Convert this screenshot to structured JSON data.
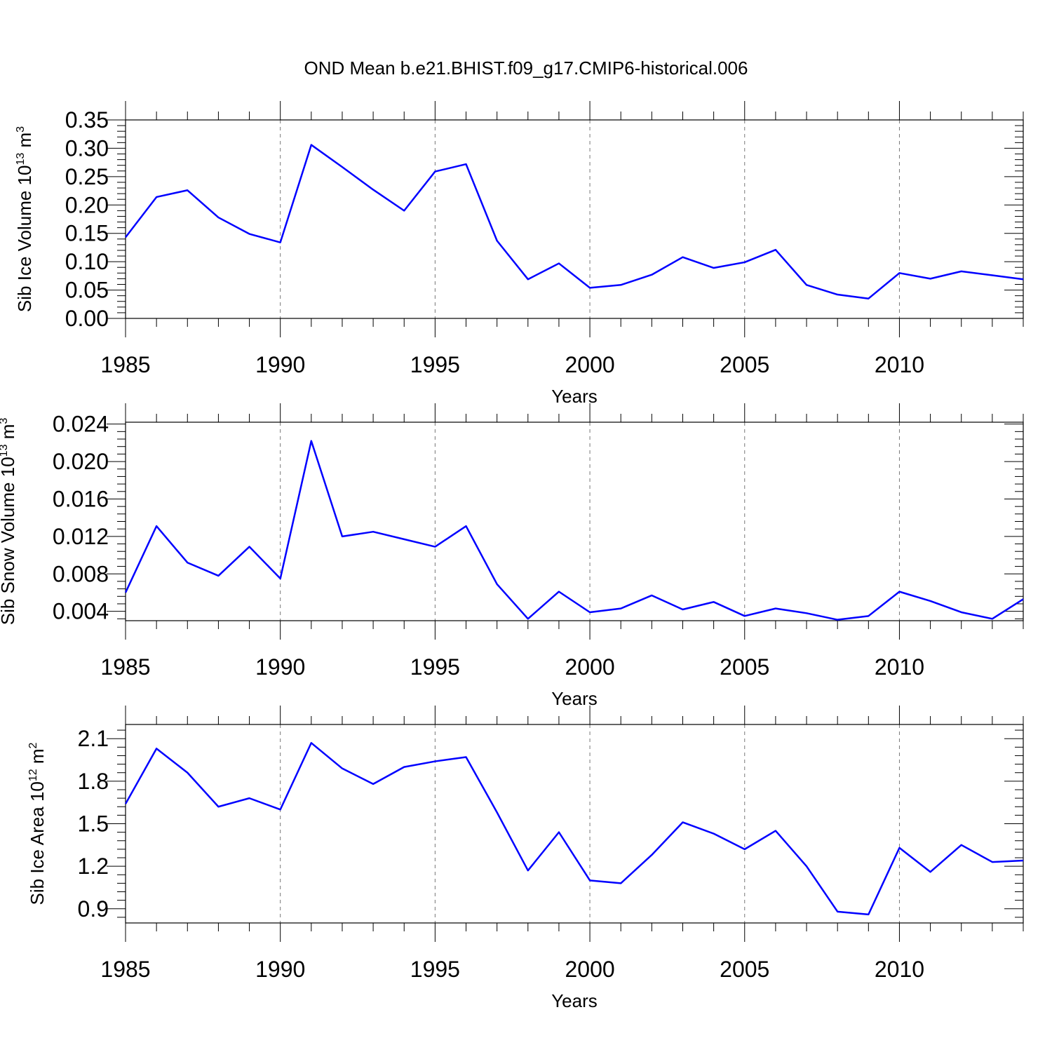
{
  "title": "OND Mean b.e21.BHIST.f09_g17.CMIP6-historical.006",
  "colors": {
    "series": "#0000ff",
    "axis": "#000000",
    "grid": "#777777"
  },
  "chart_data": [
    {
      "type": "line",
      "ylabel_main": "Sib Ice Volume 10",
      "ylabel_exp": "13",
      "ylabel_unit": " m",
      "ylabel_unit_exp": "3",
      "xlabel": "Years",
      "xlim": [
        1985,
        2014
      ],
      "ylim": [
        0.0,
        0.35
      ],
      "xticks": [
        1985,
        1990,
        1995,
        2000,
        2005,
        2010
      ],
      "xtick_labels": [
        "1985",
        "1990",
        "1995",
        "2000",
        "2005",
        "2010"
      ],
      "yticks": [
        0.0,
        0.05,
        0.1,
        0.15,
        0.2,
        0.25,
        0.3,
        0.35
      ],
      "ytick_labels": [
        "0.00",
        "0.05",
        "0.10",
        "0.15",
        "0.20",
        "0.25",
        "0.30",
        "0.35"
      ],
      "grid_x": true,
      "x": [
        1985,
        1986,
        1987,
        1988,
        1989,
        1990,
        1991,
        1992,
        1993,
        1994,
        1995,
        1996,
        1997,
        1998,
        1999,
        2000,
        2001,
        2002,
        2003,
        2004,
        2005,
        2006,
        2007,
        2008,
        2009,
        2010,
        2011,
        2012,
        2013,
        2014
      ],
      "series": [
        {
          "name": "Sib Ice Volume",
          "values": [
            0.143,
            0.214,
            0.226,
            0.178,
            0.149,
            0.134,
            0.306,
            0.267,
            0.227,
            0.19,
            0.259,
            0.272,
            0.137,
            0.069,
            0.097,
            0.054,
            0.059,
            0.077,
            0.108,
            0.089,
            0.099,
            0.121,
            0.059,
            0.042,
            0.035,
            0.08,
            0.07,
            0.083,
            0.076,
            0.069
          ]
        }
      ]
    },
    {
      "type": "line",
      "ylabel_main": "Sib Snow Volume 10",
      "ylabel_exp": "13",
      "ylabel_unit": " m",
      "ylabel_unit_exp": "3",
      "xlabel": "Years",
      "xlim": [
        1985,
        2014
      ],
      "ylim": [
        0.003,
        0.0242
      ],
      "xticks": [
        1985,
        1990,
        1995,
        2000,
        2005,
        2010
      ],
      "xtick_labels": [
        "1985",
        "1990",
        "1995",
        "2000",
        "2005",
        "2010"
      ],
      "yticks": [
        0.004,
        0.008,
        0.012,
        0.016,
        0.02,
        0.024
      ],
      "ytick_labels": [
        "0.004",
        "0.008",
        "0.012",
        "0.016",
        "0.020",
        "0.024"
      ],
      "grid_x": true,
      "x": [
        1985,
        1986,
        1987,
        1988,
        1989,
        1990,
        1991,
        1992,
        1993,
        1994,
        1995,
        1996,
        1997,
        1998,
        1999,
        2000,
        2001,
        2002,
        2003,
        2004,
        2005,
        2006,
        2007,
        2008,
        2009,
        2010,
        2011,
        2012,
        2013,
        2014
      ],
      "series": [
        {
          "name": "Sib Snow Volume",
          "values": [
            0.006,
            0.0131,
            0.0092,
            0.0078,
            0.0109,
            0.0075,
            0.0222,
            0.012,
            0.0125,
            0.0117,
            0.0109,
            0.0131,
            0.0069,
            0.0032,
            0.0061,
            0.0039,
            0.0043,
            0.0057,
            0.0042,
            0.005,
            0.0035,
            0.0043,
            0.0038,
            0.0031,
            0.0035,
            0.0061,
            0.0051,
            0.0039,
            0.0032,
            0.0053
          ]
        }
      ]
    },
    {
      "type": "line",
      "ylabel_main": "Sib Ice Area 10",
      "ylabel_exp": "12",
      "ylabel_unit": " m",
      "ylabel_unit_exp": "2",
      "xlabel": "Years",
      "xlim": [
        1985,
        2014
      ],
      "ylim": [
        0.8,
        2.2
      ],
      "xticks": [
        1985,
        1990,
        1995,
        2000,
        2005,
        2010
      ],
      "xtick_labels": [
        "1985",
        "1990",
        "1995",
        "2000",
        "2005",
        "2010"
      ],
      "yticks": [
        0.9,
        1.2,
        1.5,
        1.8,
        2.1
      ],
      "ytick_labels": [
        "0.9",
        "1.2",
        "1.5",
        "1.8",
        "2.1"
      ],
      "grid_x": true,
      "x": [
        1985,
        1986,
        1987,
        1988,
        1989,
        1990,
        1991,
        1992,
        1993,
        1994,
        1995,
        1996,
        1997,
        1998,
        1999,
        2000,
        2001,
        2002,
        2003,
        2004,
        2005,
        2006,
        2007,
        2008,
        2009,
        2010,
        2011,
        2012,
        2013,
        2014
      ],
      "series": [
        {
          "name": "Sib Ice Area",
          "values": [
            1.64,
            2.03,
            1.86,
            1.62,
            1.68,
            1.6,
            2.07,
            1.89,
            1.78,
            1.9,
            1.94,
            1.97,
            1.58,
            1.17,
            1.44,
            1.1,
            1.08,
            1.28,
            1.51,
            1.43,
            1.32,
            1.45,
            1.2,
            0.88,
            0.86,
            1.33,
            1.16,
            1.35,
            1.23,
            1.24
          ]
        }
      ]
    }
  ]
}
